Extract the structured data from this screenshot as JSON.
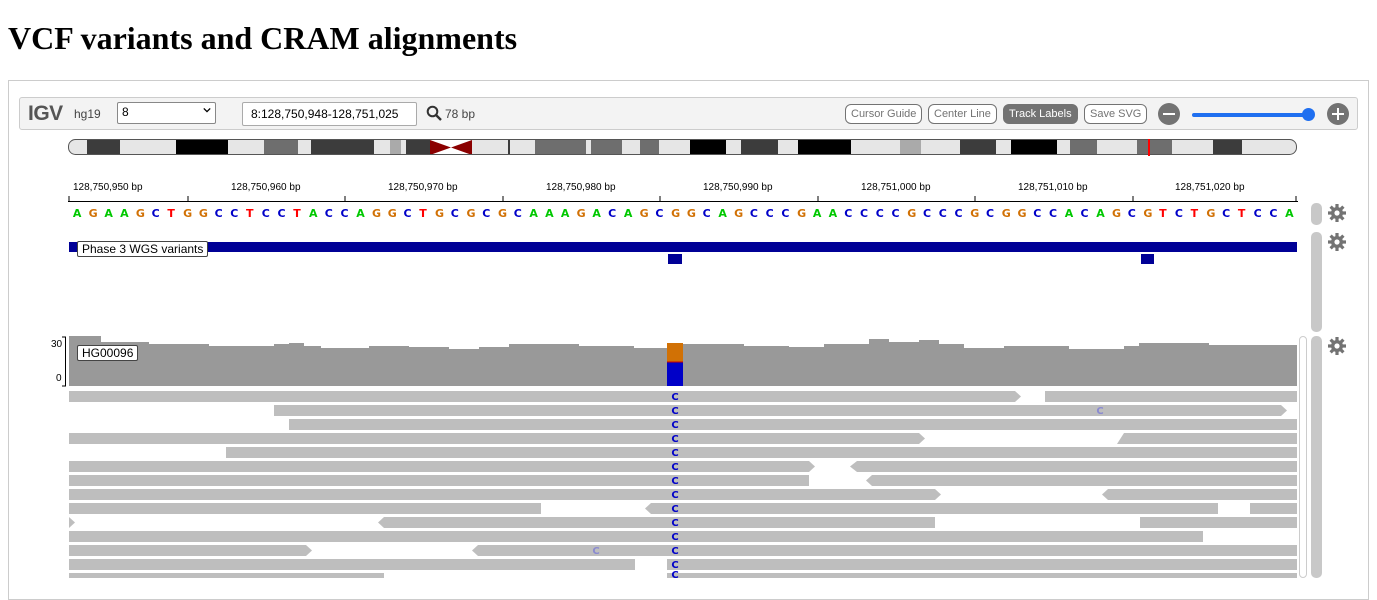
{
  "heading": "VCF variants and CRAM alignments",
  "navbar": {
    "logo": "IGV",
    "genome": "hg19",
    "chromosome": "8",
    "locus": "8:128,750,948-128,751,025",
    "width_text": "78 bp",
    "buttons": {
      "cursor_guide": "Cursor Guide",
      "center_line": "Center Line",
      "track_labels": "Track Labels",
      "save_svg": "Save SVG"
    },
    "zoom_level": 0.95
  },
  "ruler": {
    "labels": [
      "128,750,950 bp",
      "128,750,960 bp",
      "128,750,970 bp",
      "128,750,980 bp",
      "128,750,990 bp",
      "128,751,000 bp",
      "128,751,010 bp",
      "128,751,020 bp"
    ]
  },
  "sequence": "AGAAGCTGGCCTCCTACCAGGCTGCGCGCAAAGACAGCGGCAGCCCGAACCCCGCCCGCGGCCACAGCGTCTGCTCCA",
  "base_colors": {
    "A": "#00c800",
    "C": "#0000c8",
    "G": "#d17105",
    "T": "#ff0000"
  },
  "tracks": {
    "variants": {
      "label": "Phase 3 WGS variants",
      "color": "#000096"
    },
    "alignment": {
      "label": "HG00096",
      "coverage_max": "30",
      "coverage_min": "0",
      "mismatch_base": "C"
    }
  }
}
